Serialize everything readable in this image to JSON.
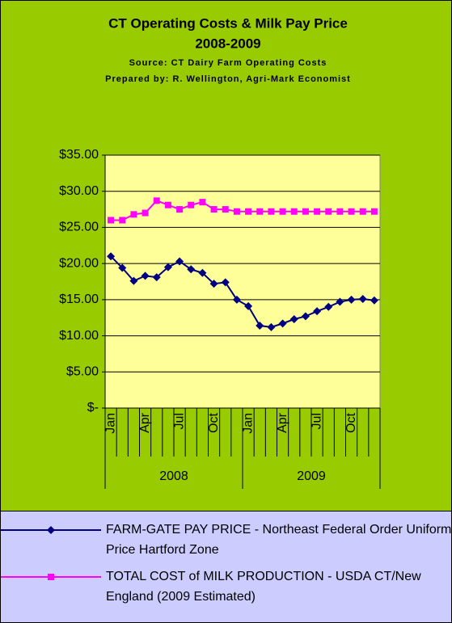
{
  "chart_data": {
    "type": "line",
    "title": "CT Operating Costs & Milk Pay Price",
    "subtitle": "2008-2009",
    "source": "Source: CT Dairy Farm Operating Costs",
    "prepared_by": "Prepared by: R. Wellington, Agri-Mark Economist",
    "categories": [
      "Jan",
      null,
      null,
      "Apr",
      null,
      null,
      "Jul",
      null,
      null,
      "Oct",
      null,
      null,
      "Jan",
      null,
      null,
      "Apr",
      null,
      null,
      "Jul",
      null,
      null,
      "Oct",
      null,
      null
    ],
    "groups": [
      "2008",
      "2009"
    ],
    "series": [
      {
        "name": "FARM-GATE PAY PRICE - Northeast Federal Order Uniform Price Hartford Zone",
        "color": "#000080",
        "marker": "diamond",
        "values": [
          21.0,
          19.4,
          17.6,
          18.3,
          18.1,
          19.5,
          20.3,
          19.2,
          18.7,
          17.2,
          17.4,
          15.0,
          14.1,
          11.4,
          11.2,
          11.7,
          12.3,
          12.7,
          13.4,
          14.0,
          14.7,
          15.0,
          15.1,
          14.9
        ]
      },
      {
        "name": "TOTAL COST of MILK PRODUCTION - USDA CT/New England (2009 Estimated)",
        "color": "#ff00ff",
        "marker": "square",
        "values": [
          26.0,
          26.0,
          26.8,
          27.0,
          28.7,
          28.1,
          27.5,
          28.1,
          28.5,
          27.5,
          27.5,
          27.2,
          27.2,
          27.2,
          27.2,
          27.2,
          27.2,
          27.2,
          27.2,
          27.2,
          27.2,
          27.2,
          27.2,
          27.2
        ]
      }
    ],
    "ylim": [
      0,
      35
    ],
    "yticks": [
      {
        "value": 0,
        "label": "$-"
      },
      {
        "value": 5,
        "label": "$5.00"
      },
      {
        "value": 10,
        "label": "$10.00"
      },
      {
        "value": 15,
        "label": "$15.00"
      },
      {
        "value": 20,
        "label": "$20.00"
      },
      {
        "value": 25,
        "label": "$25.00"
      },
      {
        "value": 30,
        "label": "$30.00"
      },
      {
        "value": 35,
        "label": "$35.00"
      }
    ],
    "grid": true
  }
}
